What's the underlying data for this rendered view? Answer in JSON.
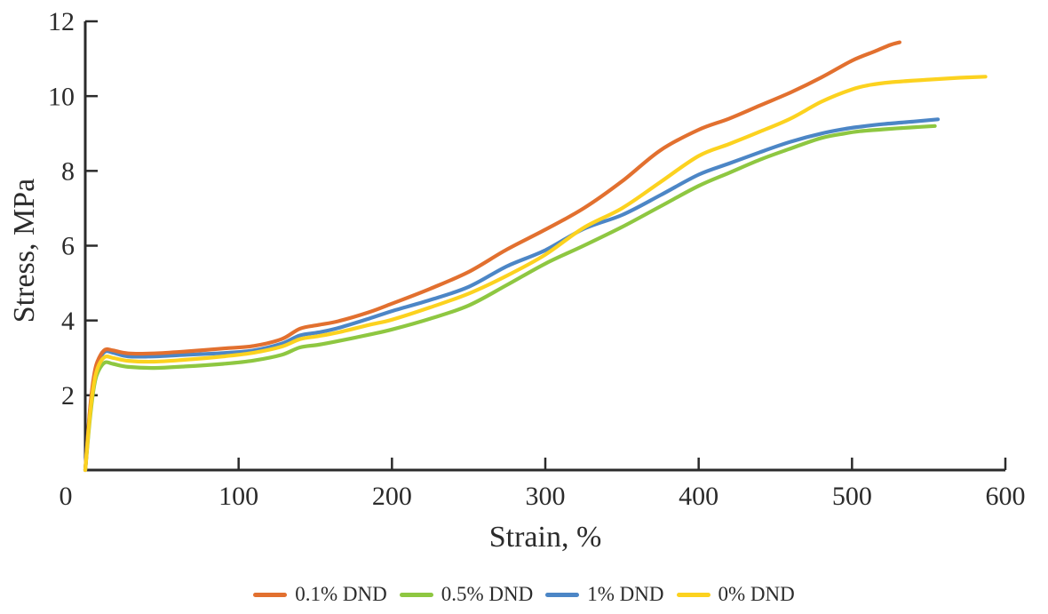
{
  "figure": {
    "background": "#ffffff",
    "axis_color": "#2b2b2b",
    "text_color": "#2b2b2b"
  },
  "chart_data": {
    "type": "line",
    "title": "",
    "xlabel": "Strain, %",
    "ylabel": "Stress, MPa",
    "xlim": [
      0,
      600
    ],
    "ylim": [
      0,
      12
    ],
    "x_ticks": [
      0,
      100,
      200,
      300,
      400,
      500,
      600
    ],
    "y_ticks": [
      2,
      4,
      6,
      8,
      10,
      12
    ],
    "origin_label": "0",
    "grid": false,
    "legend_position": "bottom",
    "draw_order": [
      1,
      2,
      0,
      3
    ],
    "series": [
      {
        "name": "0.1% DND",
        "color": "#E2702F",
        "points": [
          [
            0,
            0
          ],
          [
            3,
            1.6
          ],
          [
            6,
            2.6
          ],
          [
            9,
            3.0
          ],
          [
            13,
            3.22
          ],
          [
            18,
            3.2
          ],
          [
            28,
            3.12
          ],
          [
            45,
            3.12
          ],
          [
            65,
            3.17
          ],
          [
            90,
            3.25
          ],
          [
            110,
            3.32
          ],
          [
            128,
            3.5
          ],
          [
            140,
            3.78
          ],
          [
            152,
            3.88
          ],
          [
            165,
            3.98
          ],
          [
            185,
            4.22
          ],
          [
            200,
            4.45
          ],
          [
            225,
            4.85
          ],
          [
            250,
            5.3
          ],
          [
            275,
            5.9
          ],
          [
            300,
            6.43
          ],
          [
            325,
            7.0
          ],
          [
            350,
            7.72
          ],
          [
            375,
            8.55
          ],
          [
            400,
            9.1
          ],
          [
            420,
            9.4
          ],
          [
            440,
            9.75
          ],
          [
            460,
            10.1
          ],
          [
            480,
            10.5
          ],
          [
            500,
            10.95
          ],
          [
            515,
            11.2
          ],
          [
            525,
            11.37
          ],
          [
            531,
            11.44
          ]
        ]
      },
      {
        "name": "0.5% DND",
        "color": "#8EC741",
        "points": [
          [
            0,
            0
          ],
          [
            3,
            1.35
          ],
          [
            6,
            2.3
          ],
          [
            9,
            2.68
          ],
          [
            13,
            2.88
          ],
          [
            18,
            2.84
          ],
          [
            28,
            2.76
          ],
          [
            45,
            2.73
          ],
          [
            65,
            2.77
          ],
          [
            90,
            2.84
          ],
          [
            110,
            2.93
          ],
          [
            128,
            3.08
          ],
          [
            140,
            3.28
          ],
          [
            152,
            3.35
          ],
          [
            165,
            3.45
          ],
          [
            185,
            3.62
          ],
          [
            200,
            3.76
          ],
          [
            225,
            4.05
          ],
          [
            250,
            4.4
          ],
          [
            275,
            4.95
          ],
          [
            300,
            5.52
          ],
          [
            325,
            6.0
          ],
          [
            350,
            6.5
          ],
          [
            375,
            7.05
          ],
          [
            400,
            7.6
          ],
          [
            420,
            7.95
          ],
          [
            440,
            8.3
          ],
          [
            460,
            8.6
          ],
          [
            480,
            8.88
          ],
          [
            495,
            9.0
          ],
          [
            505,
            9.06
          ],
          [
            520,
            9.11
          ],
          [
            538,
            9.16
          ],
          [
            554,
            9.2
          ]
        ]
      },
      {
        "name": "1% DND",
        "color": "#4C86C6",
        "points": [
          [
            0,
            0
          ],
          [
            3,
            1.55
          ],
          [
            6,
            2.55
          ],
          [
            9,
            2.95
          ],
          [
            13,
            3.17
          ],
          [
            18,
            3.14
          ],
          [
            28,
            3.04
          ],
          [
            45,
            3.04
          ],
          [
            65,
            3.08
          ],
          [
            90,
            3.13
          ],
          [
            110,
            3.2
          ],
          [
            128,
            3.38
          ],
          [
            140,
            3.6
          ],
          [
            152,
            3.68
          ],
          [
            165,
            3.8
          ],
          [
            185,
            4.05
          ],
          [
            200,
            4.25
          ],
          [
            225,
            4.55
          ],
          [
            250,
            4.9
          ],
          [
            275,
            5.45
          ],
          [
            300,
            5.88
          ],
          [
            325,
            6.45
          ],
          [
            350,
            6.82
          ],
          [
            375,
            7.35
          ],
          [
            400,
            7.9
          ],
          [
            420,
            8.2
          ],
          [
            440,
            8.5
          ],
          [
            460,
            8.78
          ],
          [
            480,
            9.0
          ],
          [
            495,
            9.12
          ],
          [
            505,
            9.18
          ],
          [
            520,
            9.25
          ],
          [
            540,
            9.32
          ],
          [
            556,
            9.38
          ]
        ]
      },
      {
        "name": "0% DND",
        "color": "#FCD21F",
        "points": [
          [
            0,
            0
          ],
          [
            3,
            1.45
          ],
          [
            6,
            2.4
          ],
          [
            9,
            2.82
          ],
          [
            13,
            3.03
          ],
          [
            18,
            3.0
          ],
          [
            28,
            2.92
          ],
          [
            45,
            2.9
          ],
          [
            65,
            2.95
          ],
          [
            90,
            3.04
          ],
          [
            110,
            3.14
          ],
          [
            128,
            3.3
          ],
          [
            140,
            3.5
          ],
          [
            152,
            3.58
          ],
          [
            165,
            3.68
          ],
          [
            185,
            3.88
          ],
          [
            200,
            4.02
          ],
          [
            225,
            4.35
          ],
          [
            250,
            4.72
          ],
          [
            275,
            5.2
          ],
          [
            300,
            5.76
          ],
          [
            325,
            6.48
          ],
          [
            350,
            7.0
          ],
          [
            375,
            7.7
          ],
          [
            400,
            8.4
          ],
          [
            420,
            8.72
          ],
          [
            440,
            9.05
          ],
          [
            460,
            9.4
          ],
          [
            480,
            9.85
          ],
          [
            500,
            10.18
          ],
          [
            512,
            10.3
          ],
          [
            525,
            10.37
          ],
          [
            550,
            10.44
          ],
          [
            570,
            10.49
          ],
          [
            587,
            10.52
          ]
        ]
      }
    ]
  }
}
